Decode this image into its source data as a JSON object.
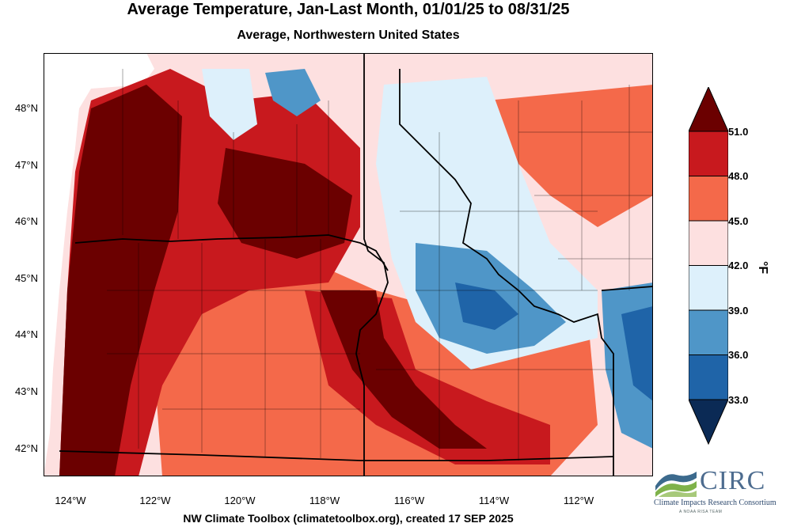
{
  "title": "Average Temperature, Jan-Last Month, 01/01/25 to 08/31/25",
  "subtitle": "Average, Northwestern United States",
  "credit": "NW Climate Toolbox (climatetoolbox.org), created 17 SEP 2025",
  "map": {
    "lat_labels": [
      "48°N",
      "47°N",
      "46°N",
      "45°N",
      "44°N",
      "43°N",
      "42°N"
    ],
    "lon_labels": [
      "124°W",
      "122°W",
      "120°W",
      "118°W",
      "116°W",
      "114°W",
      "112°W"
    ]
  },
  "legend": {
    "units": "°F",
    "ticks": [
      "51.0",
      "48.0",
      "45.0",
      "42.0",
      "39.0",
      "36.0",
      "33.0"
    ],
    "colors": [
      "#6b0000",
      "#c8191e",
      "#f4694a",
      "#fde0e0",
      "#ddf0fb",
      "#4f96c8",
      "#1f64a8",
      "#0b2a55"
    ]
  },
  "logo": {
    "name": "CIRC",
    "subtitle": "Climate Impacts Research Consortium",
    "tagline": "A NOAA RISA TEAM"
  }
}
